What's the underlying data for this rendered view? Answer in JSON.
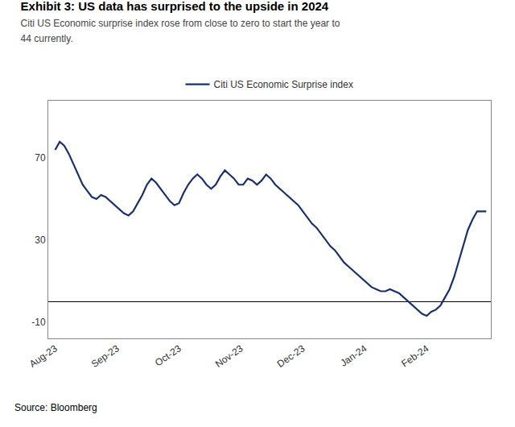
{
  "chart_data": {
    "type": "line",
    "title": "Exhibit 3: US data has surprised to the upside in 2024",
    "subtitle": "Citi US Economic surprise index rose from close to zero to start the year to\n44 currently.",
    "source": "Source: Bloomberg",
    "x": [
      0,
      2,
      4,
      6,
      8,
      10,
      12,
      14,
      16,
      18,
      20,
      22,
      24,
      26,
      28,
      30,
      32,
      34,
      36,
      38,
      40,
      42,
      44,
      46,
      48,
      50,
      52,
      54,
      56,
      58,
      60,
      62,
      64,
      66,
      68,
      70,
      72,
      74,
      76,
      78,
      80,
      82,
      84,
      86,
      88,
      90,
      92,
      94,
      96,
      98,
      100,
      102,
      104,
      106,
      108,
      110,
      112,
      114,
      116,
      118,
      120,
      122,
      124,
      126,
      128,
      130,
      132,
      134,
      136,
      138,
      140,
      142,
      144,
      146,
      148,
      150,
      152,
      154,
      156,
      158,
      160,
      162,
      164,
      166,
      168,
      170,
      172,
      174,
      176,
      178,
      180,
      182,
      184,
      186,
      188
    ],
    "series": [
      {
        "name": "Citi US Economic Surprise index",
        "color": "#1a2f6e",
        "values": [
          74,
          78,
          76,
          72,
          67,
          62,
          57,
          54,
          51,
          50,
          52,
          51,
          49,
          47,
          45,
          43,
          42,
          44,
          48,
          52,
          57,
          60,
          58,
          55,
          52,
          49,
          47,
          48,
          53,
          57,
          60,
          62,
          60,
          57,
          55,
          57,
          61,
          64,
          62,
          60,
          57,
          57,
          60,
          59,
          57,
          59,
          62,
          60,
          57,
          55,
          53,
          51,
          49,
          47,
          44,
          41,
          38,
          36,
          33,
          30,
          27,
          25,
          22,
          19,
          17,
          15,
          13,
          11,
          9,
          7,
          6,
          5,
          5,
          6,
          5,
          4,
          2,
          0,
          -2,
          -4,
          -6,
          -7,
          -5,
          -4,
          -2,
          2,
          6,
          12,
          20,
          28,
          35,
          40,
          44,
          44,
          44
        ]
      }
    ],
    "xlim": [
      -3,
      190
    ],
    "xticks": [
      {
        "value": 0,
        "label": "Aug-23"
      },
      {
        "value": 27,
        "label": "Sep-23"
      },
      {
        "value": 54,
        "label": "Oct-23"
      },
      {
        "value": 81,
        "label": "Nov-23"
      },
      {
        "value": 108,
        "label": "Dec-23"
      },
      {
        "value": 135,
        "label": "Jan-24"
      },
      {
        "value": 162,
        "label": "Feb-24"
      }
    ],
    "ylim": [
      -18,
      98
    ],
    "yticks": [
      -10,
      30,
      70
    ],
    "grid": false,
    "legend": "top"
  }
}
